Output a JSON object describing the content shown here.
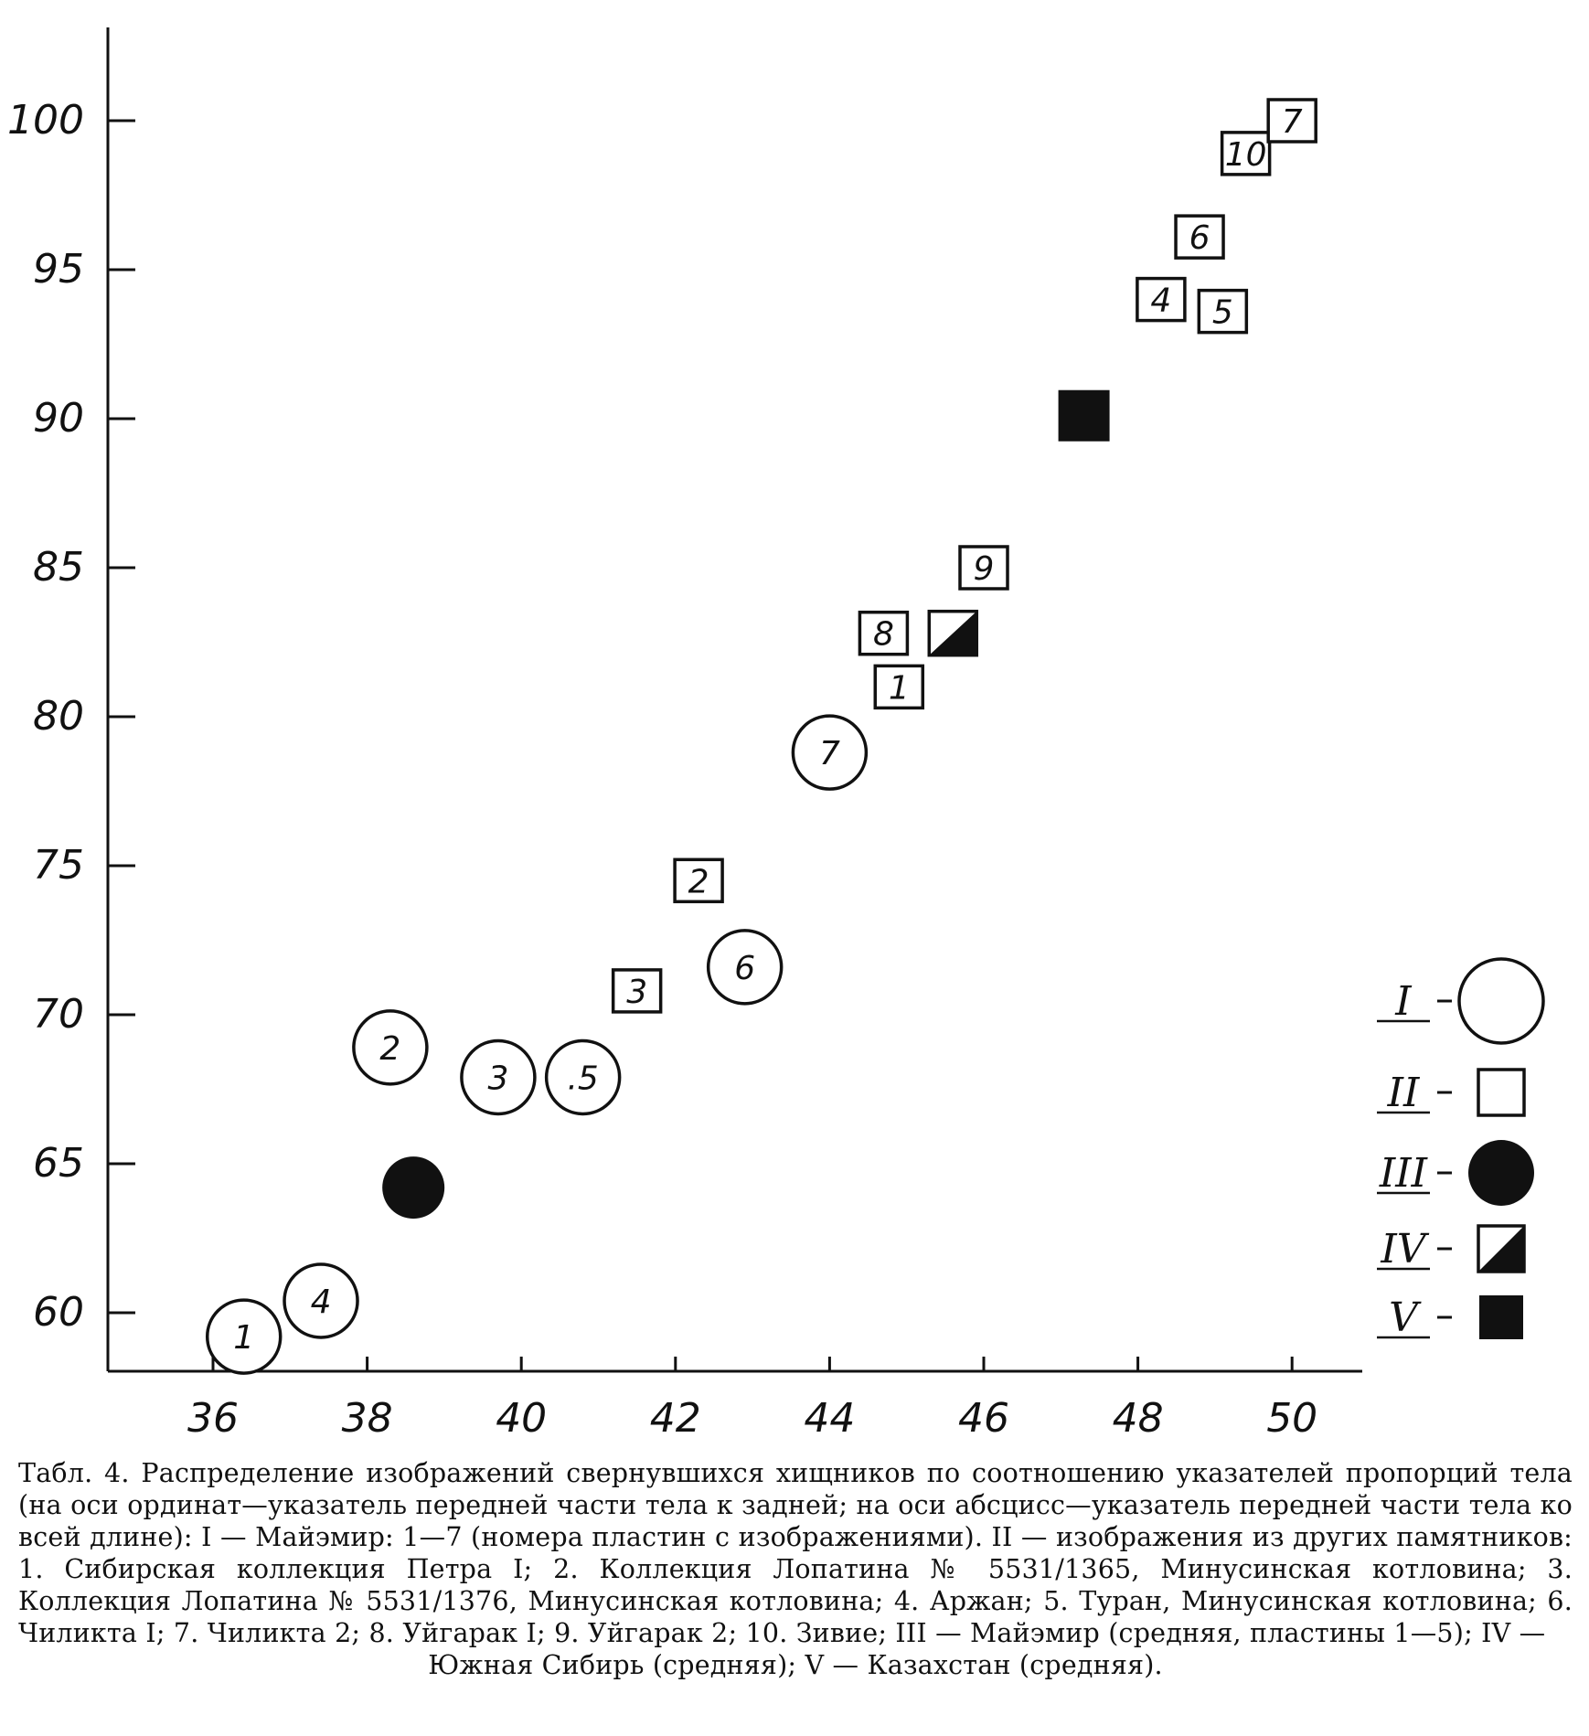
{
  "chart_data": {
    "type": "scatter",
    "xlim": [
      34.8,
      51.2
    ],
    "ylim": [
      56.5,
      102.5
    ],
    "x_ticks": [
      36,
      38,
      40,
      42,
      44,
      46,
      48,
      50
    ],
    "y_ticks": [
      60,
      65,
      70,
      75,
      80,
      85,
      90,
      95,
      100
    ],
    "grid": false,
    "legend_position": "right",
    "series": [
      {
        "name": "I",
        "marker": "circle-open",
        "points": [
          {
            "label": "1",
            "x": 36.4,
            "y": 59.2
          },
          {
            "label": "4",
            "x": 37.4,
            "y": 60.4
          },
          {
            "label": "2",
            "x": 38.3,
            "y": 68.9
          },
          {
            "label": "3",
            "x": 39.7,
            "y": 67.9
          },
          {
            "label": ".5",
            "x": 40.8,
            "y": 67.9
          },
          {
            "label": "6",
            "x": 42.9,
            "y": 71.6
          },
          {
            "label": "7",
            "x": 44.0,
            "y": 78.8
          }
        ]
      },
      {
        "name": "II",
        "marker": "square-open",
        "points": [
          {
            "label": "3",
            "x": 41.5,
            "y": 70.8
          },
          {
            "label": "2",
            "x": 42.3,
            "y": 74.5
          },
          {
            "label": "1",
            "x": 44.9,
            "y": 81.0
          },
          {
            "label": "8",
            "x": 44.7,
            "y": 82.8
          },
          {
            "label": "9",
            "x": 46.0,
            "y": 85.0
          },
          {
            "label": "4",
            "x": 48.3,
            "y": 94.0
          },
          {
            "label": "5",
            "x": 49.1,
            "y": 93.6
          },
          {
            "label": "6",
            "x": 48.8,
            "y": 96.1
          },
          {
            "label": "10",
            "x": 49.4,
            "y": 98.9
          },
          {
            "label": "7",
            "x": 50.0,
            "y": 100.0
          }
        ]
      },
      {
        "name": "III",
        "marker": "circle-filled",
        "points": [
          {
            "label": "",
            "x": 38.6,
            "y": 64.2
          }
        ]
      },
      {
        "name": "IV",
        "marker": "square-half",
        "points": [
          {
            "label": "",
            "x": 45.6,
            "y": 82.8
          }
        ]
      },
      {
        "name": "V",
        "marker": "square-filled",
        "points": [
          {
            "label": "",
            "x": 47.3,
            "y": 90.1
          }
        ]
      }
    ]
  },
  "caption": {
    "lead": "Табл. 4. Распределение изображений свернувшихся хищников по соотношению указателей пропорций тела (на оси ординат—указатель передней части тела к задней; на оси абсцисс—указатель передней части тела ко всей длине): I — Майэмир: 1—7 (номера пластин с изображениями). II — изображения из других памятников: 1. Сибирская коллекция Петра I; 2. Коллекция Лопатина № 5531/1365, Минусинская котловина; 3. Коллекция Лопатина № 5531/1376, Минусинская котловина; 4. Аржан; 5. Туран, Минусинская котловина; 6. Чиликта I; 7. Чиликта 2; 8. Уйгарак I; 9. Уйгарак 2; 10. Зивие; III — Майэмир (средняя, пластины 1—5); IV —",
    "last": "Южная Сибирь (средняя); V — Казахстан (средняя)."
  }
}
